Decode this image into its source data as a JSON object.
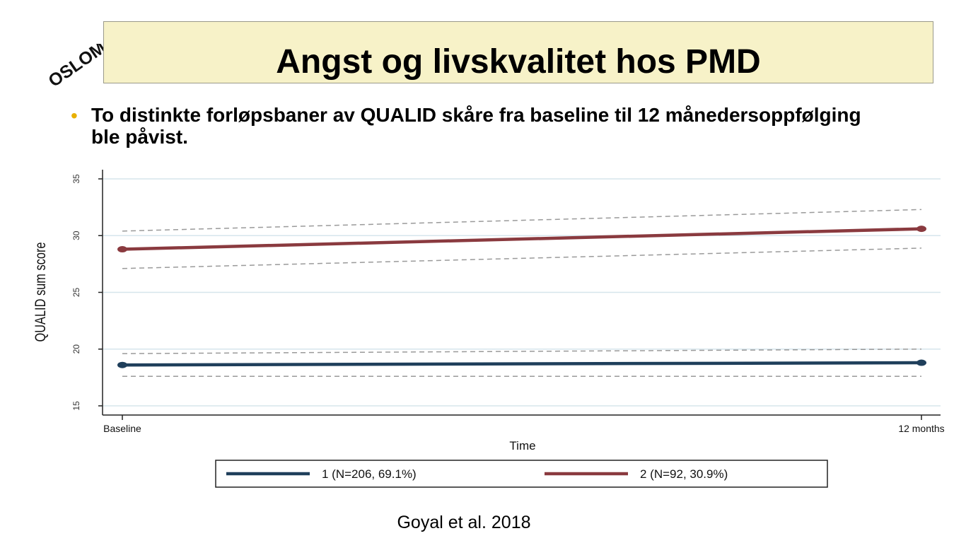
{
  "slide": {
    "logo_text": "OSLOMET",
    "title": "Angst og livskvalitet hos PMD",
    "bullet": "To distinkte forløpsbaner av QUALID skåre fra baseline til 12 månedersoppfølging ble påvist.",
    "source": "Goyal et al. 2018"
  },
  "colors": {
    "series1": "#1f3f5b",
    "series2": "#8a3a3f",
    "ci": "#9a9a9a",
    "grid": "#d6e5ec",
    "bullet": "#e8b000",
    "title_bg": "#f7f2c8"
  },
  "chart_data": {
    "type": "line",
    "xlabel": "Time",
    "ylabel": "QUALID sum score",
    "categories": [
      "Baseline",
      "12 months"
    ],
    "ylim": [
      15,
      35
    ],
    "yticks": [
      "15",
      "20",
      "25",
      "30",
      "35"
    ],
    "grid": true,
    "legend_position": "bottom",
    "series": [
      {
        "name": "1 (N=206, 69.1%)",
        "values": [
          18.6,
          18.8
        ],
        "ci_upper": [
          19.6,
          20.0
        ],
        "ci_lower": [
          17.6,
          17.6
        ]
      },
      {
        "name": "2 (N=92, 30.9%)",
        "values": [
          28.8,
          30.6
        ],
        "ci_upper": [
          30.4,
          32.3
        ],
        "ci_lower": [
          27.1,
          28.9
        ]
      }
    ]
  }
}
